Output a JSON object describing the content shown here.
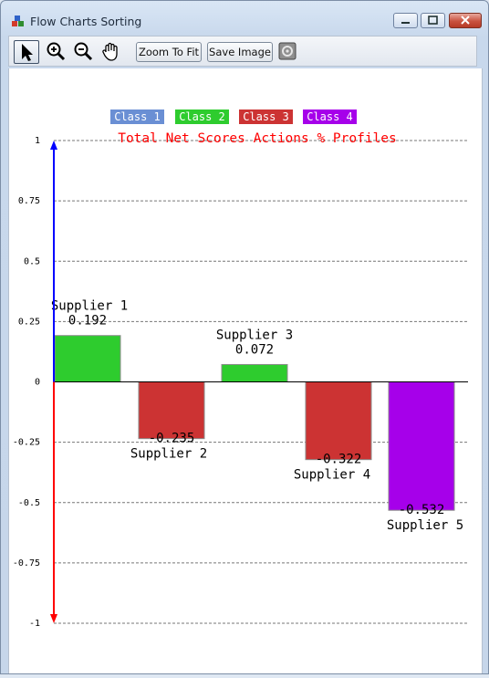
{
  "window": {
    "title": "Flow Charts Sorting"
  },
  "toolbar": {
    "tools": [
      "pointer-icon",
      "zoom-in-icon",
      "zoom-out-icon",
      "hand-pan-icon"
    ],
    "zoom_fit_label": "Zoom To Fit",
    "save_image_label": "Save Image",
    "extra_icon": "image-settings-icon"
  },
  "chart_data": {
    "type": "bar",
    "title": "Total Net Scores Actions % Profiles",
    "title_color": "#ff0000",
    "legend": [
      {
        "label": "Class 1",
        "color": "#6a8fd4"
      },
      {
        "label": "Class 2",
        "color": "#2ecc2e"
      },
      {
        "label": "Class 3",
        "color": "#cc3333"
      },
      {
        "label": "Class 4",
        "color": "#a600ea"
      }
    ],
    "legend_position": "top-center",
    "categories": [
      "Supplier 1",
      "Supplier 2",
      "Supplier 3",
      "Supplier 4",
      "Supplier 5"
    ],
    "values": [
      0.192,
      -0.235,
      0.072,
      -0.322,
      -0.532
    ],
    "value_labels": [
      "0.192",
      "-0.235",
      "0.072",
      "-0.322",
      "-0.532"
    ],
    "bar_classes": [
      2,
      3,
      2,
      3,
      4
    ],
    "ylim": [
      -1,
      1
    ],
    "yticks": [
      1,
      0.75,
      0.5,
      0.25,
      0,
      -0.25,
      -0.5,
      -0.75,
      -1
    ],
    "ytick_labels": [
      "1",
      "0.75",
      "0.5",
      "0.25",
      "0",
      "-0.25",
      "-0.5",
      "-0.75",
      "-1"
    ],
    "grid": true,
    "axis_positive_color": "#0000ff",
    "axis_negative_color": "#ff0000"
  }
}
